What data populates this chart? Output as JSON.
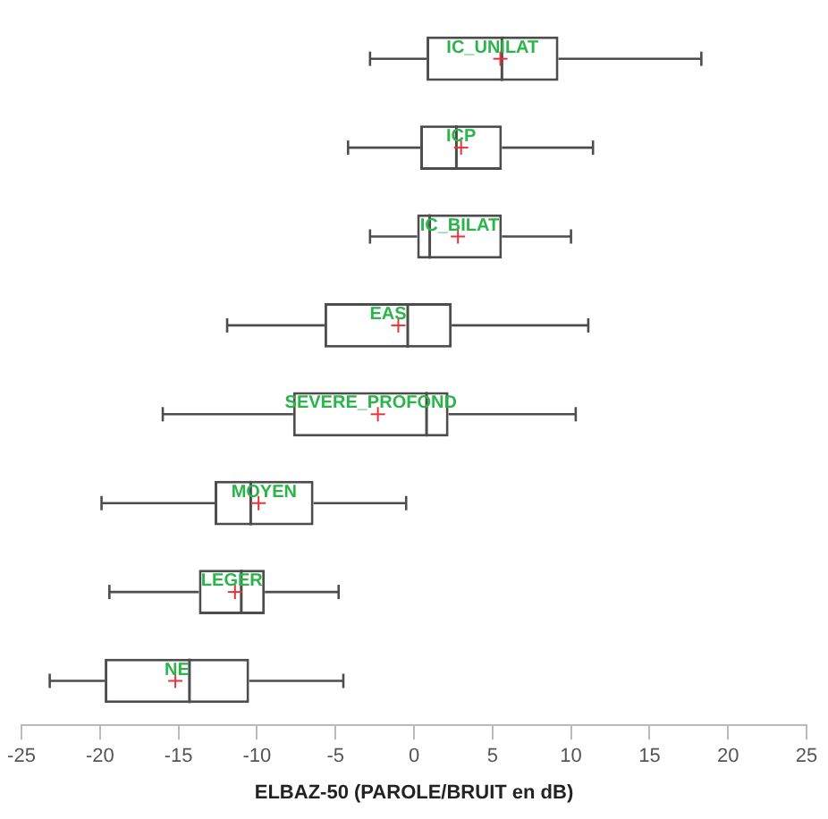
{
  "chart_data": {
    "type": "box",
    "orientation": "horizontal",
    "xlabel": "ELBAZ-50 (PAROLE/BRUIT en dB)",
    "categories": [
      "IC_UNILAT",
      "ICP",
      "IC_BILAT",
      "EAS",
      "SEVERE_PROFOND",
      "MOYEN",
      "LEGER",
      "NE"
    ],
    "series": [
      {
        "color": "#4d4d4d",
        "boxes": [
          {
            "low": -2.8,
            "q1": 0.8,
            "median": 5.6,
            "q3": 9.2,
            "high": 18.3,
            "mean": 5.5
          },
          {
            "low": -4.2,
            "q1": 0.4,
            "median": 2.7,
            "q3": 5.6,
            "high": 11.4,
            "mean": 3.0
          },
          {
            "low": -2.8,
            "q1": 0.2,
            "median": 1.0,
            "q3": 5.6,
            "high": 10.0,
            "mean": 2.8
          },
          {
            "low": -11.9,
            "q1": -5.7,
            "median": -0.4,
            "q3": 2.4,
            "high": 11.1,
            "mean": -1.0
          },
          {
            "low": -16.0,
            "q1": -7.7,
            "median": 0.8,
            "q3": 2.2,
            "high": 10.3,
            "mean": -2.3
          },
          {
            "low": -19.9,
            "q1": -12.7,
            "median": -10.4,
            "q3": -6.4,
            "high": -0.5,
            "mean": -9.9
          },
          {
            "low": -19.4,
            "q1": -13.7,
            "median": -11.0,
            "q3": -9.5,
            "high": -4.8,
            "mean": -11.4
          },
          {
            "low": -23.2,
            "q1": -19.7,
            "median": -14.3,
            "q3": -10.5,
            "high": -4.5,
            "mean": -15.2
          }
        ]
      }
    ],
    "xlim": [
      -25,
      25
    ],
    "xticks": [
      -25,
      -20,
      -15,
      -10,
      -5,
      0,
      5,
      10,
      15,
      20,
      25
    ],
    "tick_labels": "x",
    "grid": false,
    "legend": false
  }
}
